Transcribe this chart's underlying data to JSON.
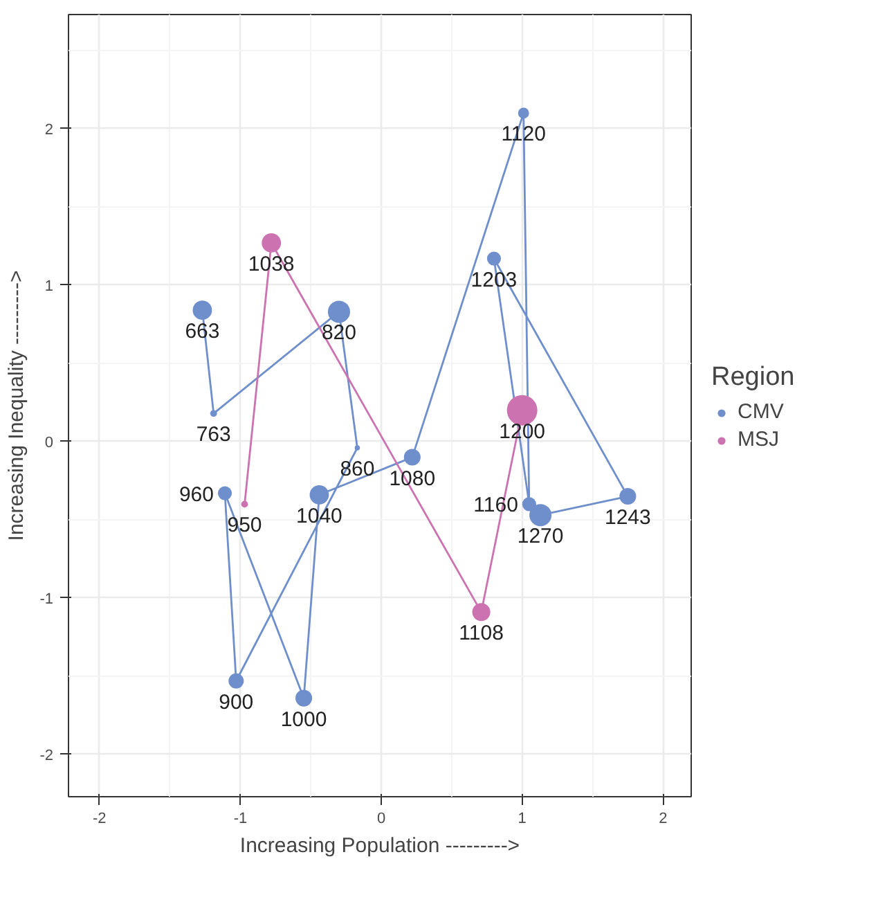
{
  "chart_data": {
    "type": "bubble",
    "xlabel": "Increasing Population --------->",
    "ylabel": "Increasing Inequality --------->",
    "legend_title": "Region",
    "legend": "right",
    "grid": true,
    "xlim": [
      -2.22,
      2.2
    ],
    "ylim": [
      -2.27,
      2.73
    ],
    "xticks": [
      -2,
      -1,
      0,
      1,
      2
    ],
    "yticks": [
      -2,
      -1,
      0,
      1,
      2
    ],
    "series": [
      {
        "type": "line",
        "color": "#6f8fcc",
        "x": [
          -1.27,
          -1.19,
          -0.3,
          -0.17,
          -1.03,
          -1.11,
          -0.55,
          -0.44,
          0.22,
          1.01,
          1.05,
          0.8,
          1.75,
          1.13
        ],
        "values": [
          0.84,
          0.18,
          0.83,
          -0.04,
          -1.53,
          -0.33,
          -1.64,
          -0.34,
          -0.1,
          2.1,
          -0.4,
          1.17,
          -0.35,
          -0.47
        ]
      },
      {
        "type": "line",
        "color": "#cc72b0",
        "x": [
          -0.97,
          -0.78,
          0.71,
          1.0
        ],
        "values": [
          -0.4,
          1.27,
          -1.09,
          0.2
        ]
      },
      {
        "name": "CMV",
        "color": "#6f8fcc",
        "x": [
          -1.27,
          -1.19,
          -0.3,
          -0.17,
          -1.03,
          -1.11,
          -0.55,
          -0.44,
          0.22,
          1.01,
          1.05,
          0.8,
          1.75,
          1.13
        ],
        "values": [
          0.84,
          0.18,
          0.83,
          -0.04,
          -1.53,
          -0.33,
          -1.64,
          -0.34,
          -0.1,
          2.1,
          -0.4,
          1.17,
          -0.35,
          -0.47
        ],
        "sizes": [
          0.4,
          0.05,
          0.53,
          0.03,
          0.25,
          0.21,
          0.3,
          0.4,
          0.3,
          0.13,
          0.21,
          0.21,
          0.3,
          0.53
        ]
      },
      {
        "name": "MSJ",
        "color": "#cc72b0",
        "x": [
          -0.97,
          -0.78,
          0.71,
          1.0
        ],
        "values": [
          -0.4,
          1.27,
          -1.09,
          0.2
        ],
        "sizes": [
          0.05,
          0.4,
          0.35,
          1
        ]
      }
    ],
    "annotations": [
      {
        "text": "663",
        "x": -1.27,
        "y": 0.84
      },
      {
        "text": "763",
        "x": -1.19,
        "y": 0.18
      },
      {
        "text": "820",
        "x": -0.3,
        "y": 0.83
      },
      {
        "text": "860",
        "x": -0.17,
        "y": -0.04
      },
      {
        "text": "900",
        "x": -1.03,
        "y": -1.53
      },
      {
        "text": "960",
        "x": -1.11,
        "y": -0.33
      },
      {
        "text": "1000",
        "x": -0.55,
        "y": -1.64
      },
      {
        "text": "1040",
        "x": -0.44,
        "y": -0.34
      },
      {
        "text": "1080",
        "x": 0.22,
        "y": -0.1
      },
      {
        "text": "1120",
        "x": 1.01,
        "y": 2.1
      },
      {
        "text": "1160",
        "x": 1.05,
        "y": -0.4
      },
      {
        "text": "1203",
        "x": 0.8,
        "y": 1.17
      },
      {
        "text": "1243",
        "x": 1.75,
        "y": -0.35
      },
      {
        "text": "1270",
        "x": 1.13,
        "y": -0.47
      },
      {
        "text": "950",
        "x": -0.97,
        "y": -0.4
      },
      {
        "text": "1038",
        "x": -0.78,
        "y": 1.27
      },
      {
        "text": "1108",
        "x": 0.71,
        "y": -1.09
      },
      {
        "text": "1200",
        "x": 1.0,
        "y": 0.2
      }
    ]
  }
}
